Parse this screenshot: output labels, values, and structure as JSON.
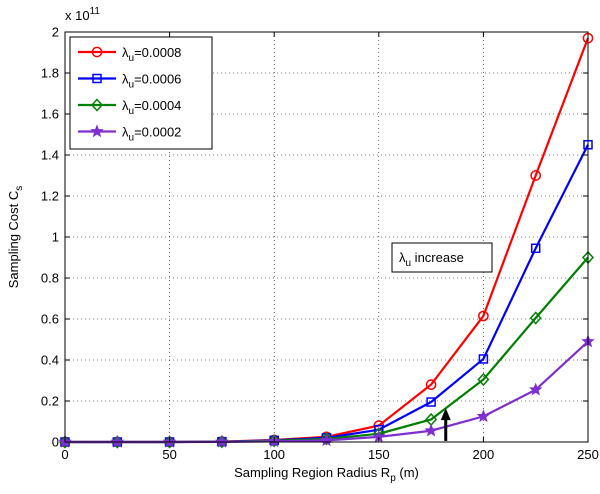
{
  "chart_data": {
    "type": "line",
    "x": [
      0,
      25,
      50,
      75,
      100,
      125,
      150,
      175,
      200,
      225,
      250
    ],
    "series": [
      {
        "name": "λ_u=0.0008",
        "color": "#ff0000",
        "marker": "circle",
        "values": [
          0,
          0,
          0,
          0.002,
          0.01,
          0.025,
          0.08,
          0.28,
          0.615,
          1.3,
          1.97
        ]
      },
      {
        "name": "λ_u=0.0006",
        "color": "#0000ff",
        "marker": "square",
        "values": [
          0,
          0,
          0,
          0.0015,
          0.008,
          0.02,
          0.06,
          0.195,
          0.405,
          0.945,
          1.45
        ]
      },
      {
        "name": "λ_u=0.0004",
        "color": "#008000",
        "marker": "diamond",
        "values": [
          0,
          0,
          0,
          0.001,
          0.006,
          0.015,
          0.04,
          0.11,
          0.305,
          0.605,
          0.9
        ]
      },
      {
        "name": "λ_u=0.0002",
        "color": "#7f2fd0",
        "marker": "star",
        "values": [
          0,
          0,
          0,
          0.0005,
          0.003,
          0.008,
          0.025,
          0.055,
          0.125,
          0.255,
          0.49
        ]
      }
    ],
    "xlim": [
      0,
      250
    ],
    "ylim": [
      0,
      2
    ],
    "xticks": [
      0,
      50,
      100,
      150,
      200,
      250
    ],
    "yticks": [
      0,
      0.2,
      0.4,
      0.6,
      0.8,
      1,
      1.2,
      1.4,
      1.6,
      1.8,
      2
    ],
    "xtick_labels": [
      "0",
      "50",
      "100",
      "150",
      "200",
      "250"
    ],
    "ytick_labels": [
      "0",
      "0.2",
      "0.4",
      "0.6",
      "0.8",
      "1",
      "1.2",
      "1.4",
      "1.6",
      "1.8",
      "2"
    ],
    "y_multiplier": {
      "base": "x 10",
      "exp": "11"
    },
    "xlabel": {
      "main": "Sampling Region Radius R",
      "sub": "p",
      "tail": " (m)"
    },
    "ylabel": {
      "main": "Sampling Cost C",
      "sub": "s"
    },
    "grid": true,
    "legend_position": "top-left",
    "annotation": {
      "main": "λ",
      "sub": "u",
      "tail": " increase",
      "arrow_x": 182,
      "arrow_from": 0.005,
      "arrow_to": 0.165
    }
  }
}
